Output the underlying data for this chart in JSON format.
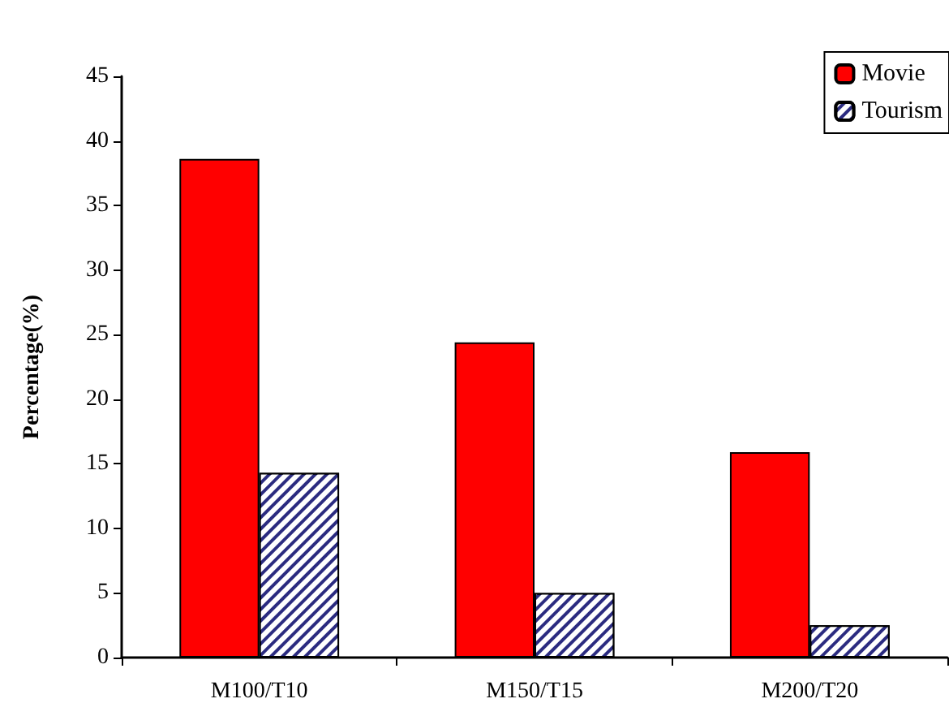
{
  "chart_data": {
    "type": "bar",
    "ylabel": "Percentage(%)",
    "categories": [
      "M100/T10",
      "M150/T15",
      "M200/T20"
    ],
    "series": [
      {
        "name": "Movie",
        "color": "#ff0000",
        "values": [
          38.6,
          24.4,
          15.9
        ]
      },
      {
        "name": "Tourism",
        "color": "#2b2b80",
        "values": [
          14.3,
          5.0,
          2.5
        ]
      }
    ],
    "ylim": [
      0,
      45
    ],
    "yticks": [
      0,
      5,
      10,
      15,
      20,
      25,
      30,
      35,
      40,
      45
    ],
    "grid": false,
    "legend": "top right"
  }
}
